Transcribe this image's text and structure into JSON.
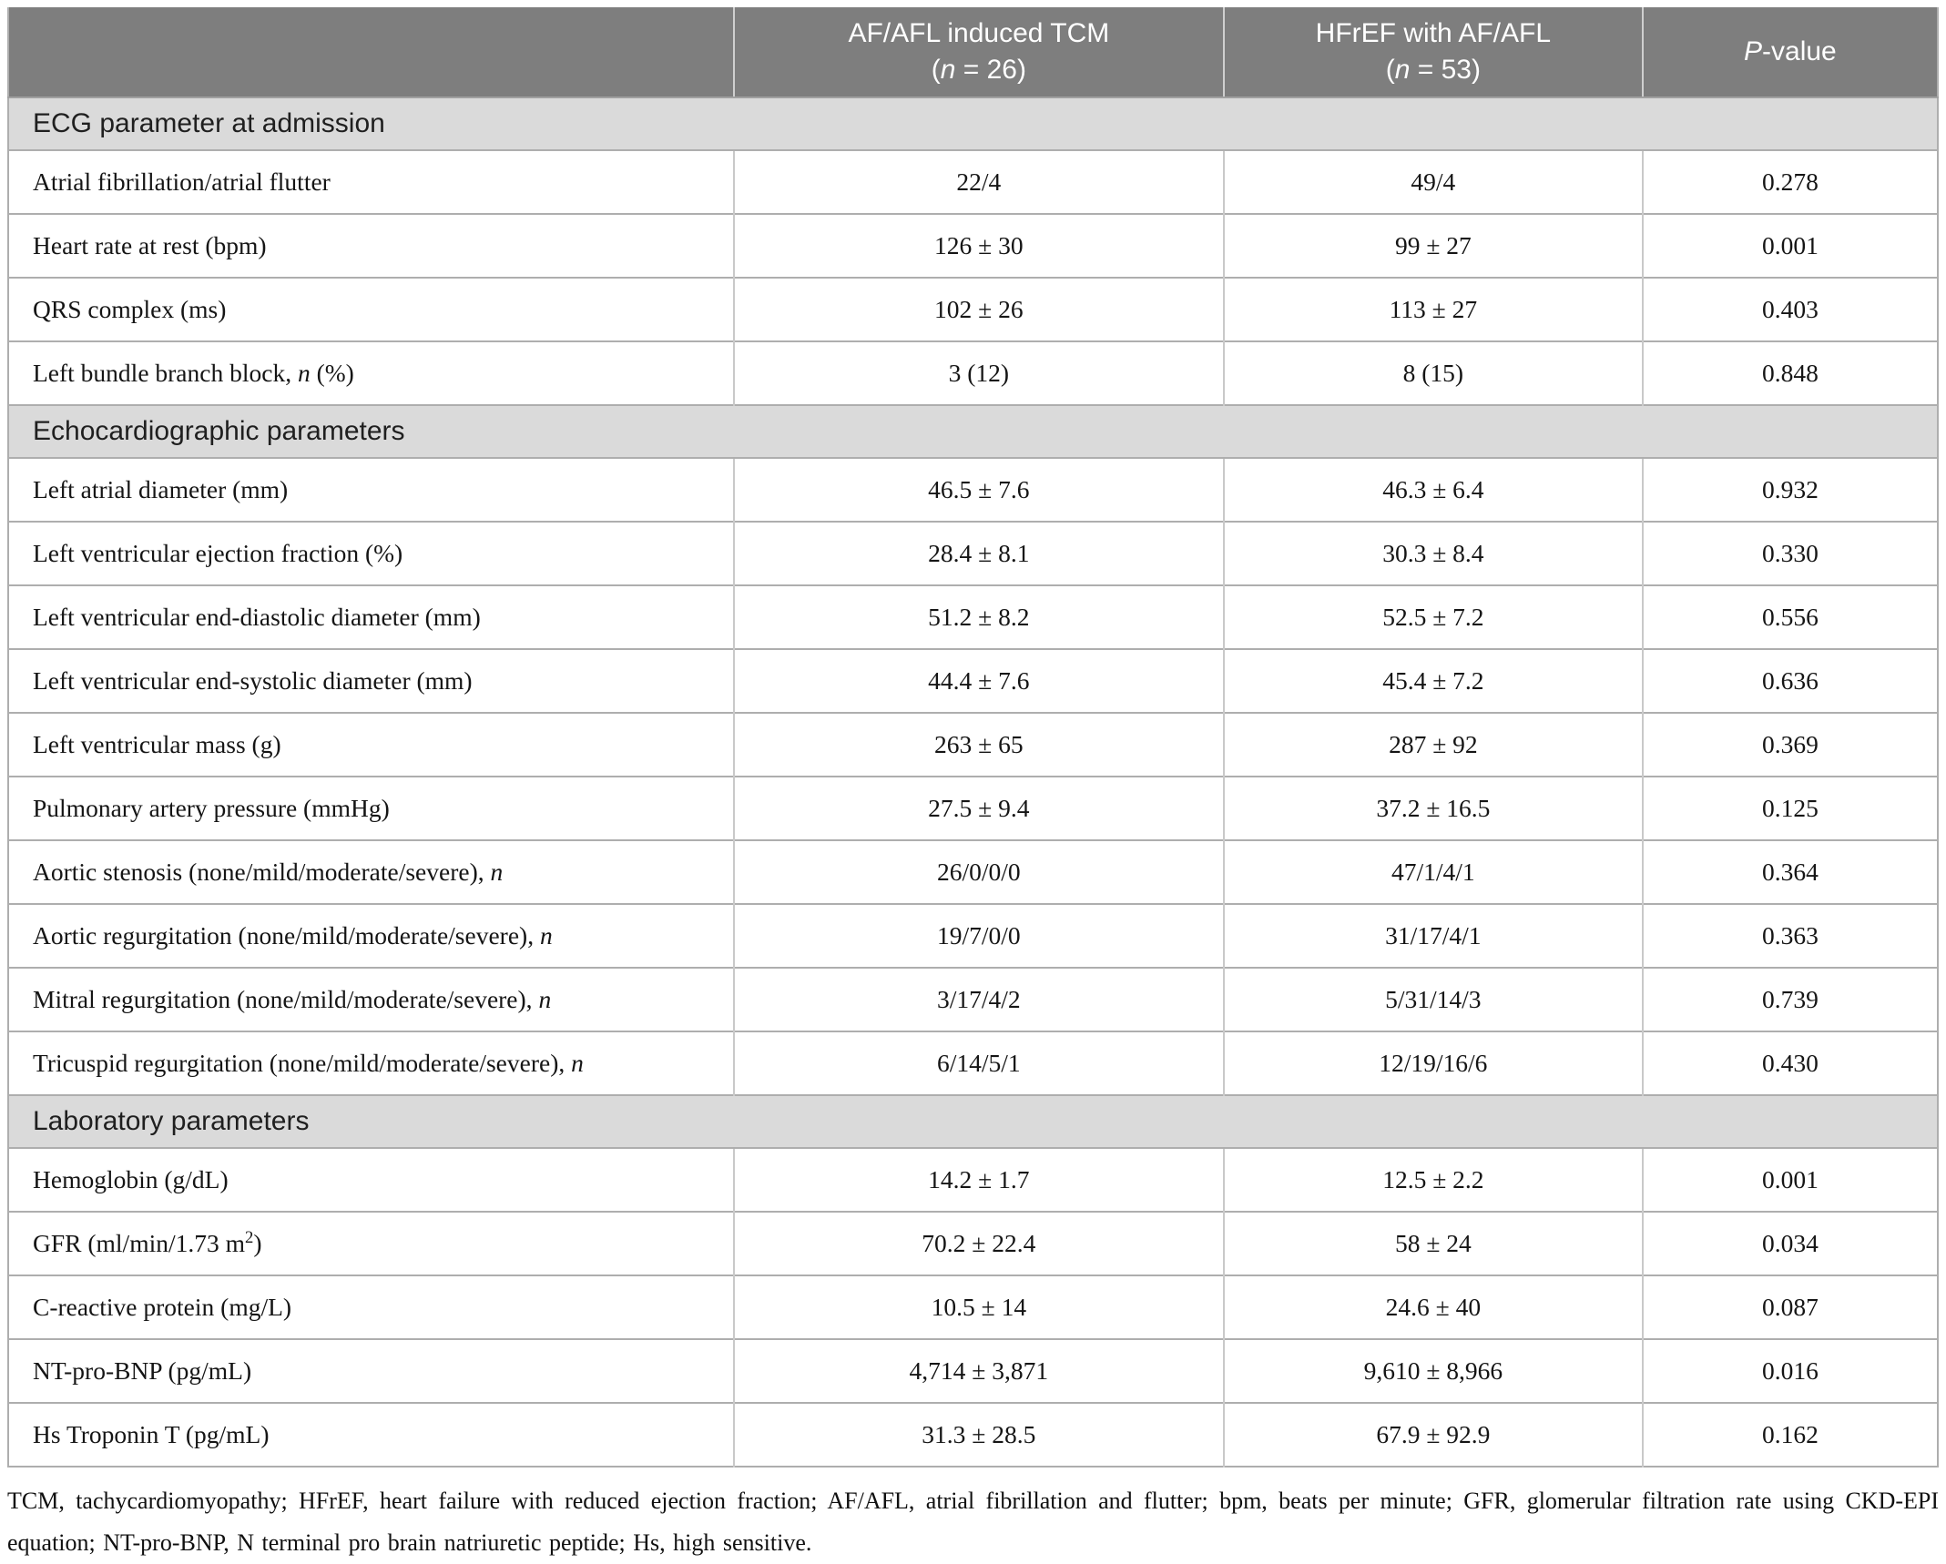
{
  "colors": {
    "header_bg": "#7e7e7e",
    "header_text": "#ffffff",
    "section_bg": "#dadada",
    "row_divider": "#aeaeae",
    "col_divider": "#c9c9c9"
  },
  "header": {
    "columns": [
      {
        "name": "row-label-column",
        "lines": []
      },
      {
        "name": "group-tcm-column",
        "lines": [
          [
            {
              "t": "AF/AFL induced TCM"
            }
          ],
          [
            {
              "t": "("
            },
            {
              "t": "n",
              "i": true
            },
            {
              "t": " = 26)"
            }
          ]
        ]
      },
      {
        "name": "group-hfref-column",
        "lines": [
          [
            {
              "t": "HFrEF with AF/AFL"
            }
          ],
          [
            {
              "t": "("
            },
            {
              "t": "n",
              "i": true
            },
            {
              "t": " = 53)"
            }
          ]
        ]
      },
      {
        "name": "p-value-column",
        "lines": [
          [
            {
              "t": "P",
              "i": true
            },
            {
              "t": "-value"
            }
          ]
        ]
      }
    ]
  },
  "sections": [
    {
      "title": "ECG parameter at admission",
      "rows": [
        {
          "label": [
            {
              "t": "Atrial fibrillation/atrial flutter"
            }
          ],
          "v1": "22/4",
          "v2": "49/4",
          "p": "0.278"
        },
        {
          "label": [
            {
              "t": "Heart rate at rest (bpm)"
            }
          ],
          "v1": "126 ± 30",
          "v2": "99 ± 27",
          "p": "0.001"
        },
        {
          "label": [
            {
              "t": "QRS complex (ms)"
            }
          ],
          "v1": "102 ± 26",
          "v2": "113 ± 27",
          "p": "0.403"
        },
        {
          "label": [
            {
              "t": "Left bundle branch block, "
            },
            {
              "t": "n",
              "i": true
            },
            {
              "t": " (%)"
            }
          ],
          "v1": "3 (12)",
          "v2": "8 (15)",
          "p": "0.848"
        }
      ]
    },
    {
      "title": "Echocardiographic parameters",
      "rows": [
        {
          "label": [
            {
              "t": "Left atrial diameter (mm)"
            }
          ],
          "v1": "46.5 ± 7.6",
          "v2": "46.3 ± 6.4",
          "p": "0.932"
        },
        {
          "label": [
            {
              "t": "Left ventricular ejection fraction (%)"
            }
          ],
          "v1": "28.4 ± 8.1",
          "v2": "30.3 ± 8.4",
          "p": "0.330"
        },
        {
          "label": [
            {
              "t": "Left ventricular end-diastolic diameter (mm)"
            }
          ],
          "v1": "51.2 ± 8.2",
          "v2": "52.5 ± 7.2",
          "p": "0.556"
        },
        {
          "label": [
            {
              "t": "Left ventricular end-systolic diameter (mm)"
            }
          ],
          "v1": "44.4 ± 7.6",
          "v2": "45.4 ± 7.2",
          "p": "0.636"
        },
        {
          "label": [
            {
              "t": "Left ventricular mass (g)"
            }
          ],
          "v1": "263 ± 65",
          "v2": "287 ± 92",
          "p": "0.369"
        },
        {
          "label": [
            {
              "t": "Pulmonary artery pressure (mmHg)"
            }
          ],
          "v1": "27.5 ± 9.4",
          "v2": "37.2 ± 16.5",
          "p": "0.125"
        },
        {
          "label": [
            {
              "t": "Aortic stenosis (none/mild/moderate/severe), "
            },
            {
              "t": "n",
              "i": true
            }
          ],
          "v1": "26/0/0/0",
          "v2": "47/1/4/1",
          "p": "0.364"
        },
        {
          "label": [
            {
              "t": "Aortic regurgitation (none/mild/moderate/severe), "
            },
            {
              "t": "n",
              "i": true
            }
          ],
          "v1": "19/7/0/0",
          "v2": "31/17/4/1",
          "p": "0.363"
        },
        {
          "label": [
            {
              "t": "Mitral regurgitation (none/mild/moderate/severe), "
            },
            {
              "t": "n",
              "i": true
            }
          ],
          "v1": "3/17/4/2",
          "v2": "5/31/14/3",
          "p": "0.739"
        },
        {
          "label": [
            {
              "t": "Tricuspid regurgitation (none/mild/moderate/severe), "
            },
            {
              "t": "n",
              "i": true
            }
          ],
          "v1": "6/14/5/1",
          "v2": "12/19/16/6",
          "p": "0.430"
        }
      ]
    },
    {
      "title": "Laboratory parameters",
      "rows": [
        {
          "label": [
            {
              "t": "Hemoglobin (g/dL)"
            }
          ],
          "v1": "14.2 ± 1.7",
          "v2": "12.5 ± 2.2",
          "p": "0.001"
        },
        {
          "label": [
            {
              "t": "GFR (ml/min/1.73 m"
            },
            {
              "t": "2",
              "sup": true
            },
            {
              "t": ")"
            }
          ],
          "v1": "70.2 ± 22.4",
          "v2": "58 ± 24",
          "p": "0.034"
        },
        {
          "label": [
            {
              "t": "C-reactive protein (mg/L)"
            }
          ],
          "v1": "10.5 ± 14",
          "v2": "24.6 ± 40",
          "p": "0.087"
        },
        {
          "label": [
            {
              "t": "NT-pro-BNP (pg/mL)"
            }
          ],
          "v1": "4,714 ± 3,871",
          "v2": "9,610 ± 8,966",
          "p": "0.016"
        },
        {
          "label": [
            {
              "t": "Hs Troponin T (pg/mL)"
            }
          ],
          "v1": "31.3 ± 28.5",
          "v2": "67.9 ± 92.9",
          "p": "0.162"
        }
      ]
    }
  ],
  "footnote": "TCM, tachycardiomyopathy; HFrEF, heart failure with reduced ejection fraction; AF/AFL, atrial fibrillation and flutter; bpm, beats per minute; GFR, glomerular filtration rate using CKD-EPI equation; NT-pro-BNP, N terminal pro brain natriuretic peptide; Hs, high sensitive."
}
